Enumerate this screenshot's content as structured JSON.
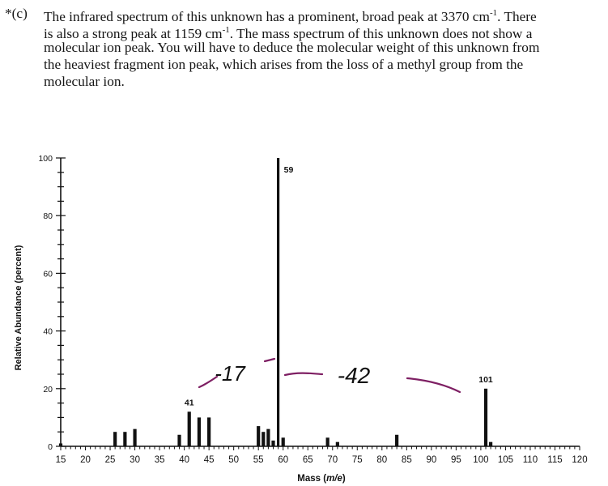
{
  "problem": {
    "label": "*(c)",
    "lines": [
      "The infrared spectrum of this unknown has a prominent, broad peak at 3370 cm",
      "is also a strong peak at 1159 cm",
      "molecular ion peak. You will have to deduce the molecular weight of this unknown from",
      "the heaviest fragment ion peak, which arises from the loss of a methyl group from the",
      "molecular ion."
    ],
    "superscript": "-1",
    "line1_tail": ". There",
    "line2_tail": ". The mass spectrum of this unknown does not show a"
  },
  "annotations": {
    "minus17": "-17",
    "minus42": "-42",
    "color": "#7e1f63"
  },
  "chart_data": {
    "type": "bar",
    "xlabel": "Mass (m/e)",
    "ylabel": "Relative Abundance (percent)",
    "xlim": [
      15,
      120
    ],
    "ylim": [
      0,
      100
    ],
    "xticks": [
      15,
      20,
      25,
      30,
      35,
      40,
      45,
      50,
      55,
      60,
      65,
      70,
      75,
      80,
      85,
      90,
      95,
      100,
      105,
      110,
      115,
      120
    ],
    "yticks": [
      0,
      20,
      40,
      60,
      80,
      100
    ],
    "grid": false,
    "bars": [
      {
        "x": 15,
        "y": 1
      },
      {
        "x": 26,
        "y": 5
      },
      {
        "x": 28,
        "y": 5
      },
      {
        "x": 30,
        "y": 6
      },
      {
        "x": 39,
        "y": 4
      },
      {
        "x": 41,
        "y": 12
      },
      {
        "x": 43,
        "y": 10
      },
      {
        "x": 45,
        "y": 10
      },
      {
        "x": 55,
        "y": 7
      },
      {
        "x": 56,
        "y": 5
      },
      {
        "x": 57,
        "y": 6
      },
      {
        "x": 58,
        "y": 2
      },
      {
        "x": 59,
        "y": 100
      },
      {
        "x": 60,
        "y": 3
      },
      {
        "x": 69,
        "y": 3
      },
      {
        "x": 71,
        "y": 1.5
      },
      {
        "x": 83,
        "y": 4
      },
      {
        "x": 101,
        "y": 20
      },
      {
        "x": 102,
        "y": 1.5
      }
    ],
    "peak_labels": [
      {
        "x": 41,
        "text": "41"
      },
      {
        "x": 59,
        "text": "59"
      },
      {
        "x": 101,
        "text": "101"
      }
    ],
    "bar_color": "#111111"
  }
}
